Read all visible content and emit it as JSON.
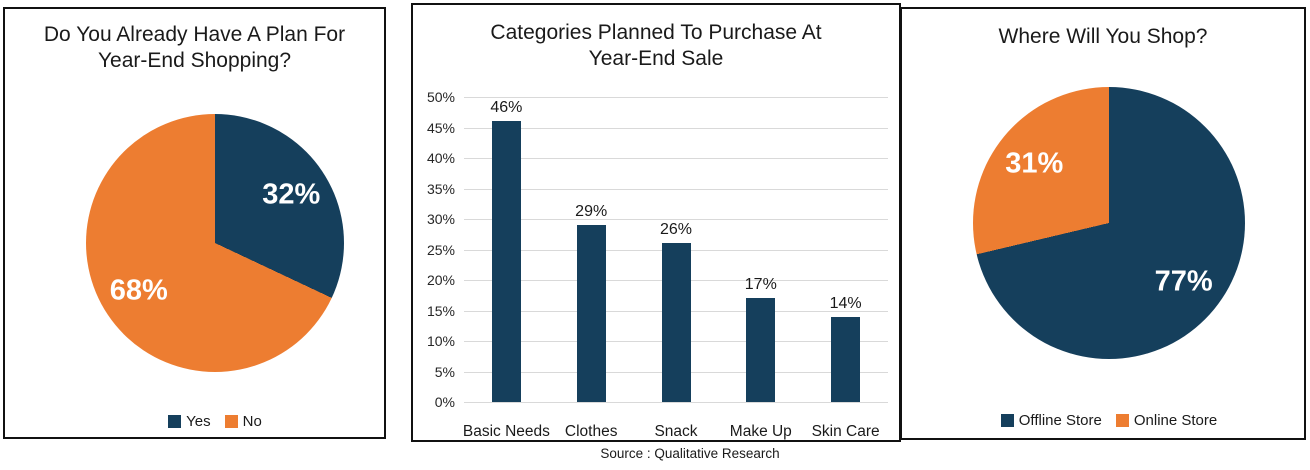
{
  "colors": {
    "navy": "#153F5C",
    "orange": "#ED7D31",
    "grid": "#D9D9D9",
    "panel_border": "#111111",
    "pie_label_text": "#FFFFFF"
  },
  "source_note": "Source : Qualitative Research",
  "chart_data": [
    {
      "type": "pie",
      "title": "Do You Already Have A Plan For Year-End Shopping?",
      "title_lines": [
        "Do You Already Have A Plan For",
        "Year-End Shopping?"
      ],
      "slices": [
        {
          "label": "Yes",
          "value": 32,
          "display": "32%",
          "color": "navy"
        },
        {
          "label": "No",
          "value": 68,
          "display": "68%",
          "color": "orange"
        }
      ],
      "legend_position": "bottom"
    },
    {
      "type": "bar",
      "title": "Categories Planned To Purchase At Year-End Sale",
      "title_lines": [
        "Categories Planned To Purchase At",
        "Year-End Sale"
      ],
      "categories": [
        "Basic Needs",
        "Clothes",
        "Snack",
        "Make Up",
        "Skin Care"
      ],
      "values": [
        46,
        29,
        26,
        17,
        14
      ],
      "value_labels": [
        "46%",
        "29%",
        "26%",
        "17%",
        "14%"
      ],
      "bar_color": "navy",
      "xlabel": "",
      "ylabel": "",
      "ylim": [
        0,
        50
      ],
      "ytick_step": 5,
      "ytick_suffix": "%",
      "grid": true,
      "legend_position": "none"
    },
    {
      "type": "pie",
      "title": "Where Will You Shop?",
      "title_lines": [
        "Where Will You Shop?"
      ],
      "slices": [
        {
          "label": "Offline Store",
          "value": 77,
          "display": "77%",
          "color": "navy"
        },
        {
          "label": "Online Store",
          "value": 31,
          "display": "31%",
          "color": "orange"
        }
      ],
      "legend_position": "bottom"
    }
  ]
}
